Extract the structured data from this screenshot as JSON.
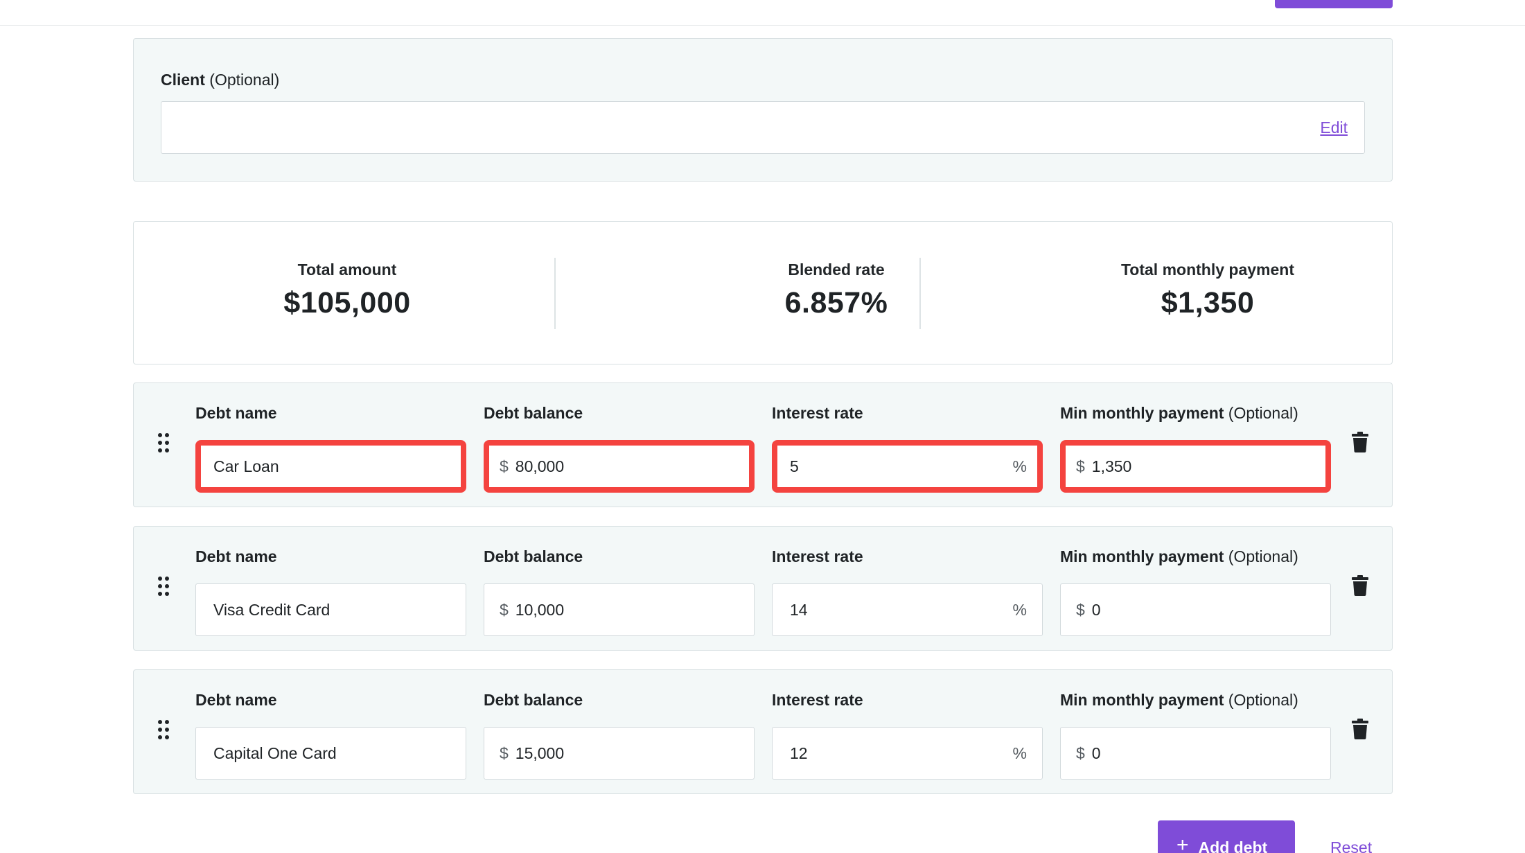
{
  "client": {
    "label": "Client",
    "optional": "(Optional)",
    "value": "",
    "edit_label": "Edit"
  },
  "summary": {
    "total_amount_label": "Total amount",
    "total_amount_value": "$105,000",
    "blended_rate_label": "Blended rate",
    "blended_rate_value": "6.857%",
    "total_payment_label": "Total monthly payment",
    "total_payment_value": "$1,350"
  },
  "labels": {
    "debt_name": "Debt name",
    "debt_balance": "Debt balance",
    "interest_rate": "Interest rate",
    "min_payment": "Min monthly payment",
    "optional": "(Optional)",
    "currency_prefix": "$",
    "percent_suffix": "%"
  },
  "debts": [
    {
      "name": "Car Loan",
      "balance": "80,000",
      "rate": "5",
      "payment": "1,350",
      "highlighted": true
    },
    {
      "name": "Visa Credit Card",
      "balance": "10,000",
      "rate": "14",
      "payment": "0",
      "highlighted": false
    },
    {
      "name": "Capital One Card",
      "balance": "15,000",
      "rate": "12",
      "payment": "0",
      "highlighted": false
    }
  ],
  "actions": {
    "add_debt_label": "Add debt",
    "reset_label": "Reset"
  },
  "colors": {
    "accent": "#7f4cd8",
    "highlight": "#f4433f",
    "card_bg": "#f3f8f8"
  },
  "icons": {
    "drag": "drag-handle-icon",
    "delete": "trash-icon",
    "add": "plus-icon"
  }
}
